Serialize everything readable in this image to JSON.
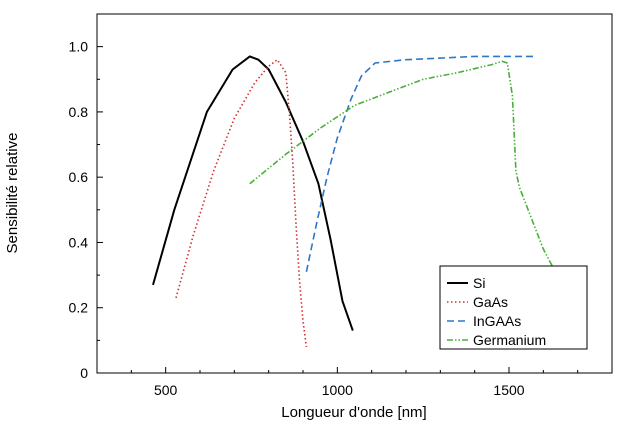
{
  "chart_data": {
    "type": "line",
    "xlabel": "Longueur d'onde [nm]",
    "ylabel": "Sensibilité relative",
    "xlim": [
      300,
      1800
    ],
    "ylim": [
      0,
      1.1
    ],
    "x_ticks": [
      500,
      1000,
      1500
    ],
    "y_ticks": [
      0,
      0.2,
      0.4,
      0.6,
      0.8,
      1.0
    ],
    "x_tick_labels": [
      "500",
      "1000",
      "1500"
    ],
    "y_tick_labels": [
      "0",
      "0.2",
      "0.4",
      "0.6",
      "0.8",
      "1.0"
    ],
    "grid": false,
    "legend_position": "bottom-right",
    "series": [
      {
        "name": "Si",
        "color": "#000000",
        "dash": "solid",
        "x": [
          463,
          525,
          620,
          695,
          745,
          770,
          800,
          850,
          900,
          945,
          980,
          1015,
          1045
        ],
        "y": [
          0.27,
          0.5,
          0.8,
          0.93,
          0.97,
          0.96,
          0.93,
          0.83,
          0.71,
          0.58,
          0.41,
          0.22,
          0.13
        ]
      },
      {
        "name": "GaAs",
        "color": "#d0312d",
        "dash": "dotted",
        "x": [
          530,
          580,
          640,
          700,
          760,
          800,
          825,
          850,
          860,
          870,
          880,
          890,
          900,
          910
        ],
        "y": [
          0.23,
          0.42,
          0.62,
          0.78,
          0.89,
          0.94,
          0.96,
          0.92,
          0.8,
          0.65,
          0.45,
          0.28,
          0.16,
          0.08
        ]
      },
      {
        "name": "InGAAs",
        "color": "#2f77c5",
        "dash": "dashed",
        "x": [
          910,
          940,
          970,
          1000,
          1040,
          1070,
          1110,
          1200,
          1300,
          1400,
          1500,
          1570
        ],
        "y": [
          0.31,
          0.46,
          0.6,
          0.72,
          0.84,
          0.91,
          0.95,
          0.96,
          0.965,
          0.97,
          0.97,
          0.97
        ]
      },
      {
        "name": "Germanium",
        "color": "#4aaf3a",
        "dash": "dashdotdot",
        "x": [
          745,
          850,
          950,
          1050,
          1150,
          1250,
          1350,
          1450,
          1480,
          1495,
          1510,
          1520,
          1530,
          1600,
          1630
        ],
        "y": [
          0.58,
          0.67,
          0.75,
          0.82,
          0.86,
          0.9,
          0.92,
          0.945,
          0.955,
          0.95,
          0.85,
          0.62,
          0.57,
          0.38,
          0.32
        ]
      }
    ]
  }
}
